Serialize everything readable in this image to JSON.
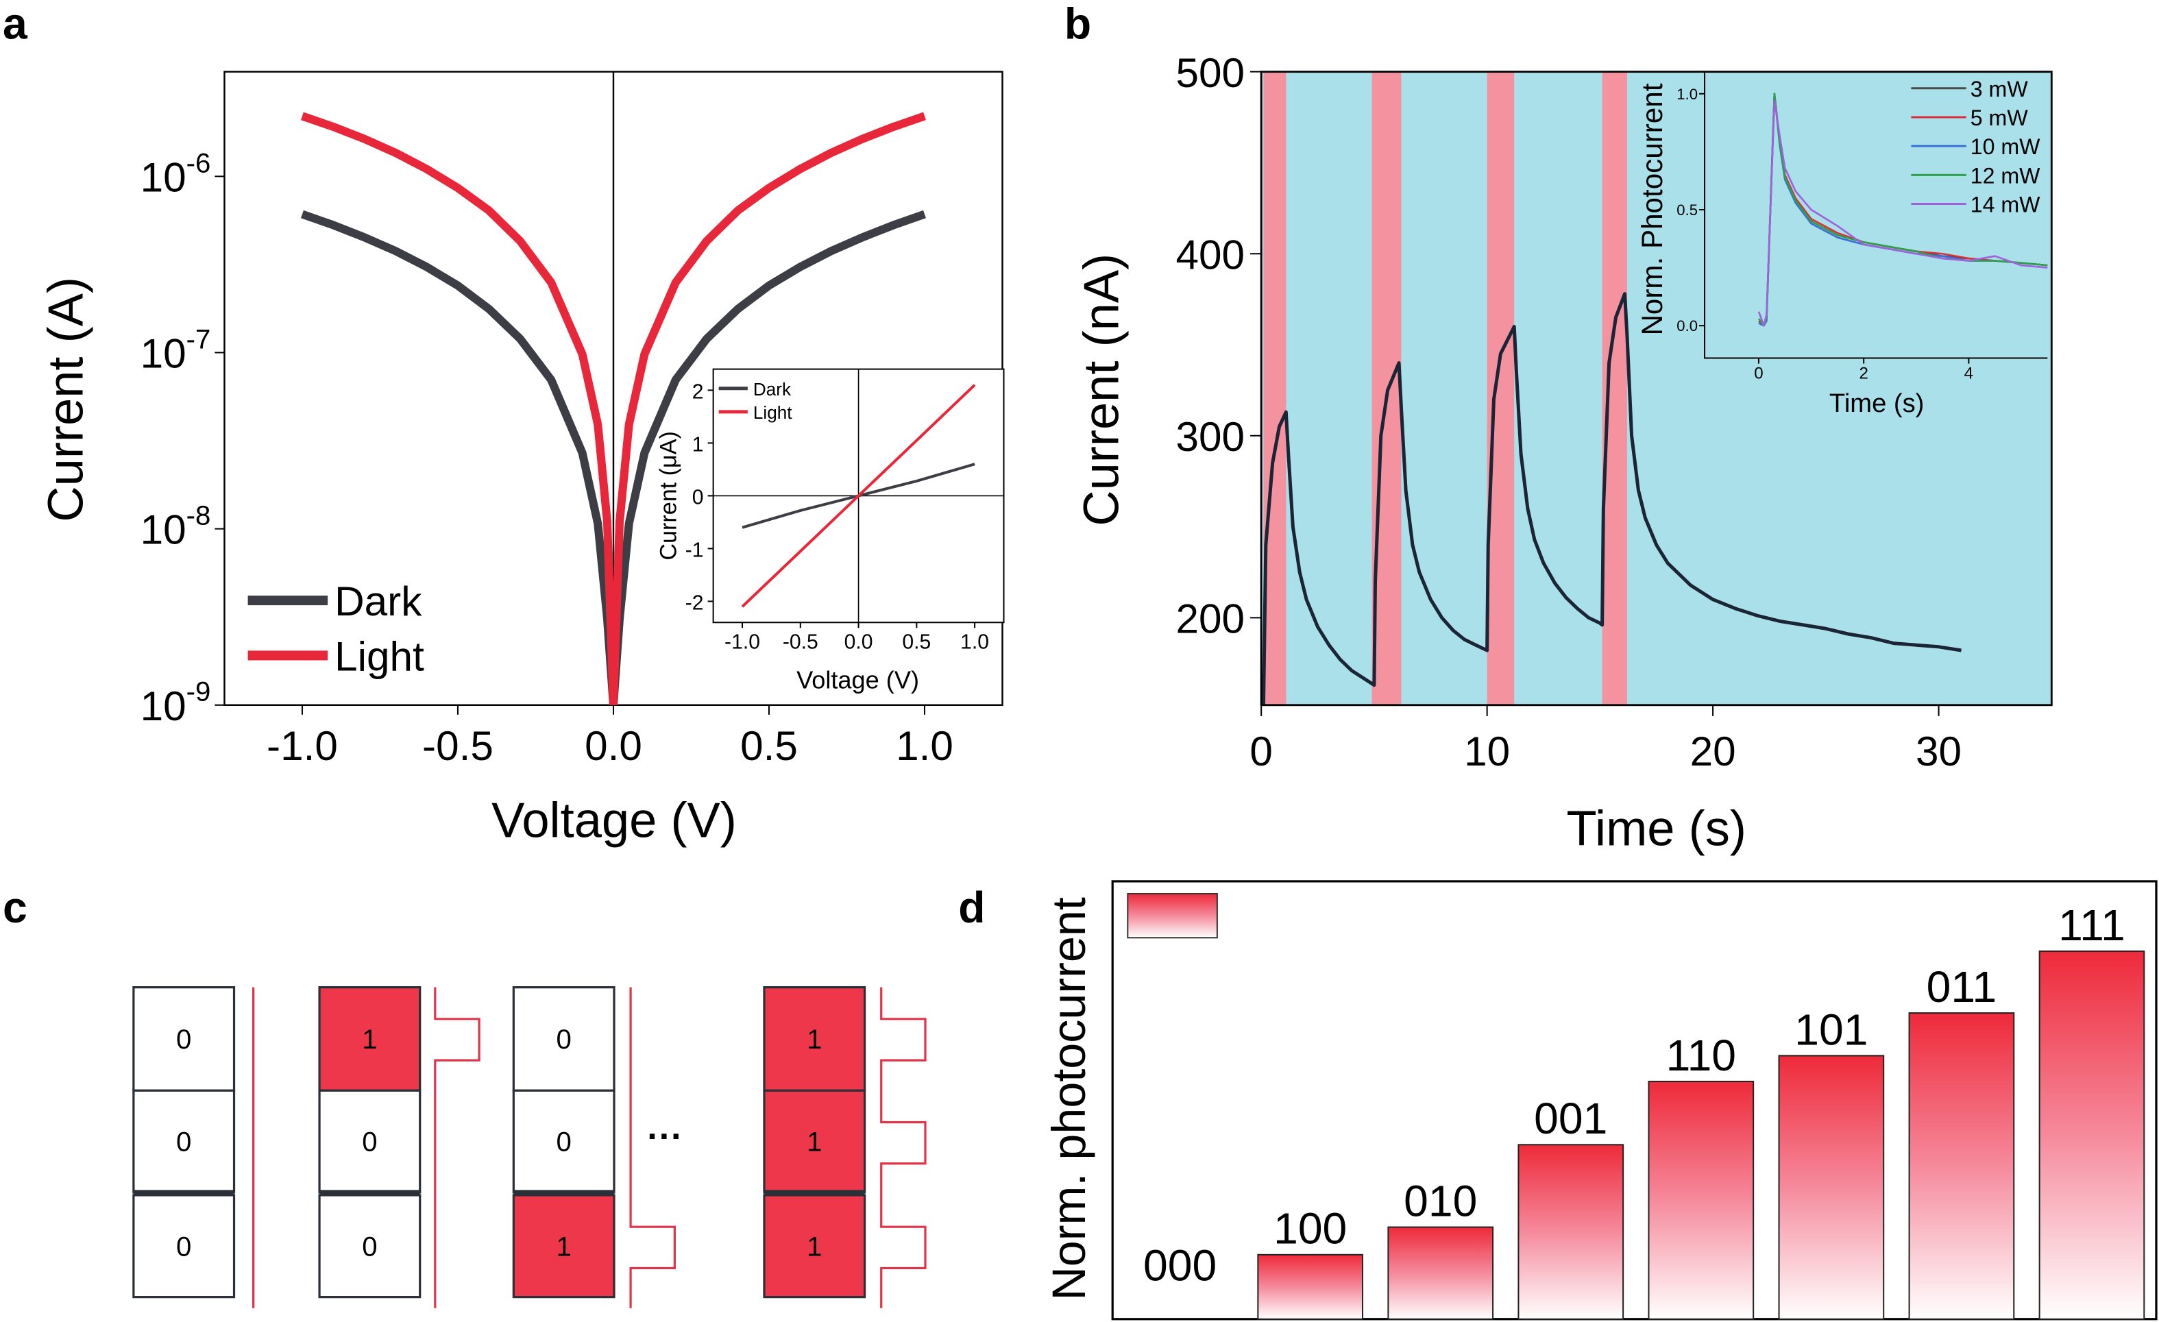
{
  "panel_labels": {
    "a": "a",
    "b": "b",
    "c": "c",
    "d": "d"
  },
  "chart_data": [
    {
      "panel": "a",
      "type": "line",
      "xlabel": "Voltage (V)",
      "ylabel": "Current (A)",
      "xlim": [
        -1.25,
        1.25
      ],
      "ylim": [
        1e-09,
        4e-06
      ],
      "yscale": "log",
      "x_ticks": [
        {
          "v": -1.0,
          "label": "-1.0"
        },
        {
          "v": -0.5,
          "label": "-0.5"
        },
        {
          "v": 0.0,
          "label": "0.0"
        },
        {
          "v": 0.5,
          "label": "0.5"
        },
        {
          "v": 1.0,
          "label": "1.0"
        }
      ],
      "y_ticks": [
        {
          "v": 1e-06,
          "base": "10",
          "exp": "-6"
        },
        {
          "v": 1e-07,
          "base": "10",
          "exp": "-7"
        },
        {
          "v": 1e-08,
          "base": "10",
          "exp": "-8"
        },
        {
          "v": 1e-09,
          "base": "10",
          "exp": "-9"
        }
      ],
      "legend": "bottom-left",
      "series": [
        {
          "name": "Dark",
          "color": "#3d3d45",
          "x": [
            -1,
            -0.9,
            -0.8,
            -0.7,
            -0.6,
            -0.5,
            -0.4,
            -0.3,
            -0.2,
            -0.1,
            -0.05,
            -0.02,
            0,
            0.02,
            0.05,
            0.1,
            0.2,
            0.3,
            0.4,
            0.5,
            0.6,
            0.7,
            0.8,
            0.9,
            1
          ],
          "y": [
            6.1e-07,
            5.29e-07,
            4.51e-07,
            3.77e-07,
            3.06e-07,
            2.4e-07,
            1.77e-07,
            1.2e-07,
            7e-08,
            2.7e-08,
            1.07e-08,
            3.1e-09,
            1e-09,
            3.1e-09,
            1.07e-08,
            2.7e-08,
            7e-08,
            1.2e-07,
            1.77e-07,
            2.4e-07,
            3.06e-07,
            3.77e-07,
            4.51e-07,
            5.29e-07,
            6.1e-07
          ]
        },
        {
          "name": "Light",
          "color": "#e8283a",
          "x": [
            -1,
            -0.9,
            -0.8,
            -0.7,
            -0.6,
            -0.5,
            -0.4,
            -0.3,
            -0.2,
            -0.1,
            -0.05,
            -0.02,
            0,
            0.02,
            0.05,
            0.1,
            0.2,
            0.3,
            0.4,
            0.5,
            0.6,
            0.7,
            0.8,
            0.9,
            1
          ],
          "y": [
            2.2e-06,
            1.91e-06,
            1.63e-06,
            1.36e-06,
            1.1e-06,
            8.6e-07,
            6.4e-07,
            4.3e-07,
            2.5e-07,
            9.8e-08,
            3.9e-08,
            1.1e-08,
            1e-09,
            1.1e-08,
            3.9e-08,
            9.8e-08,
            2.5e-07,
            4.3e-07,
            6.4e-07,
            8.6e-07,
            1.1e-06,
            1.36e-06,
            1.63e-06,
            1.91e-06,
            2.2e-06
          ]
        }
      ],
      "inset": {
        "type": "line",
        "xlabel": "Voltage (V)",
        "ylabel": "Current (μA)",
        "xlim": [
          -1.25,
          1.25
        ],
        "ylim": [
          -2.4,
          2.4
        ],
        "x_ticks": [
          {
            "v": -1.0,
            "label": "-1.0"
          },
          {
            "v": -0.5,
            "label": "-0.5"
          },
          {
            "v": 0.0,
            "label": "0.0"
          },
          {
            "v": 0.5,
            "label": "0.5"
          },
          {
            "v": 1.0,
            "label": "1.0"
          }
        ],
        "y_ticks": [
          {
            "v": 2,
            "label": "2"
          },
          {
            "v": 1,
            "label": "1"
          },
          {
            "v": 0,
            "label": "0"
          },
          {
            "v": -1,
            "label": "-1"
          },
          {
            "v": -2,
            "label": "-2"
          }
        ],
        "legend": "top-left",
        "series": [
          {
            "name": "Dark",
            "color": "#3d3d45",
            "x": [
              -1,
              -0.5,
              0,
              0.5,
              1
            ],
            "y": [
              -0.6,
              -0.28,
              0,
              0.28,
              0.6
            ]
          },
          {
            "name": "Light",
            "color": "#e8283a",
            "x": [
              -1,
              -0.5,
              0,
              0.5,
              1
            ],
            "y": [
              -2.1,
              -1.05,
              0,
              1.05,
              2.1
            ]
          }
        ]
      }
    },
    {
      "panel": "b",
      "type": "line",
      "xlabel": "Time (s)",
      "ylabel": "Current (nA)",
      "xlim": [
        0,
        35
      ],
      "ylim": [
        152,
        500
      ],
      "x_ticks": [
        {
          "v": 0,
          "label": "0"
        },
        {
          "v": 10,
          "label": "10"
        },
        {
          "v": 20,
          "label": "20"
        },
        {
          "v": 30,
          "label": "30"
        }
      ],
      "y_ticks": [
        {
          "v": 500,
          "label": "500"
        },
        {
          "v": 400,
          "label": "400"
        },
        {
          "v": 300,
          "label": "300"
        },
        {
          "v": 200,
          "label": "200"
        }
      ],
      "background_color": "#a9e0ea",
      "light_on_color": "#f4929f",
      "light_on_intervals": [
        [
          0.1,
          1.1
        ],
        [
          4.9,
          6.2
        ],
        [
          10.0,
          11.2
        ],
        [
          15.1,
          16.2
        ]
      ],
      "series": [
        {
          "color": "#1c2535",
          "x": [
            0.1,
            0.2,
            0.5,
            0.8,
            1.1,
            1.2,
            1.4,
            1.7,
            2.0,
            2.5,
            3.0,
            3.5,
            4.0,
            4.5,
            5.0,
            5.05,
            5.3,
            5.6,
            6.1,
            6.2,
            6.4,
            6.7,
            7.0,
            7.5,
            8.0,
            8.5,
            9.0,
            9.5,
            10.0,
            10.05,
            10.3,
            10.6,
            11.2,
            11.3,
            11.5,
            11.8,
            12.1,
            12.5,
            13,
            13.5,
            14,
            14.5,
            15.0,
            15.1,
            15.15,
            15.4,
            15.7,
            16.1,
            16.2,
            16.4,
            16.7,
            17,
            17.5,
            18,
            19,
            20,
            21,
            22,
            23,
            24,
            25,
            26,
            27,
            28,
            29,
            30,
            31
          ],
          "y": [
            150,
            240,
            285,
            305,
            313,
            290,
            250,
            225,
            210,
            195,
            185,
            177,
            171,
            167,
            163,
            220,
            300,
            325,
            340,
            315,
            270,
            240,
            225,
            210,
            200,
            193,
            188,
            185,
            182,
            240,
            320,
            345,
            360,
            335,
            290,
            260,
            243,
            230,
            219,
            211,
            205,
            200,
            197,
            196,
            260,
            340,
            365,
            378,
            355,
            300,
            270,
            255,
            240,
            230,
            218,
            210,
            205,
            201,
            198,
            196,
            194,
            191,
            189,
            186,
            185,
            184,
            182
          ]
        }
      ],
      "inset": {
        "type": "line",
        "xlabel": "Time (s)",
        "ylabel": "Norm. Photocurrent",
        "xlim": [
          -1.03,
          5.5
        ],
        "ylim": [
          -0.14,
          1.095
        ],
        "x_ticks": [
          {
            "v": 0,
            "label": "0"
          },
          {
            "v": 2,
            "label": "2"
          },
          {
            "v": 4,
            "label": "4"
          }
        ],
        "y_ticks": [
          {
            "v": 1.0,
            "label": "1.0"
          },
          {
            "v": 0.5,
            "label": "0.5"
          },
          {
            "v": 0.0,
            "label": "0.0"
          }
        ],
        "legend": "top-right",
        "x": [
          0,
          0.1,
          0.15,
          0.3,
          0.4,
          0.5,
          0.7,
          1.0,
          1.5,
          2.0,
          2.5,
          3.0,
          3.5,
          4.0,
          4.5,
          5.0,
          5.5
        ],
        "series": [
          {
            "name": "3 mW",
            "color": "#4a4a4a",
            "y": [
              0.02,
              0,
              0.03,
              1.0,
              0.79,
              0.64,
              0.54,
              0.45,
              0.39,
              0.36,
              0.34,
              0.32,
              0.3,
              0.29,
              0.28,
              0.27,
              0.26
            ]
          },
          {
            "name": "5 mW",
            "color": "#d9303c",
            "y": [
              0.02,
              0,
              0.04,
              1.0,
              0.8,
              0.65,
              0.55,
              0.46,
              0.4,
              0.36,
              0.34,
              0.32,
              0.31,
              0.29,
              0.28,
              0.27,
              0.26
            ]
          },
          {
            "name": "10 mW",
            "color": "#3a6fd8",
            "y": [
              0.01,
              0,
              0.02,
              1.0,
              0.78,
              0.63,
              0.53,
              0.44,
              0.38,
              0.35,
              0.33,
              0.31,
              0.3,
              0.28,
              0.28,
              0.27,
              0.26
            ]
          },
          {
            "name": "12 mW",
            "color": "#2ea04a",
            "y": [
              0.03,
              0,
              0.03,
              1.0,
              0.79,
              0.64,
              0.54,
              0.45,
              0.39,
              0.36,
              0.34,
              0.32,
              0.29,
              0.28,
              0.28,
              0.27,
              0.26
            ]
          },
          {
            "name": "14 mW",
            "color": "#a062dc",
            "y": [
              0.06,
              0,
              0.05,
              0.97,
              0.82,
              0.68,
              0.58,
              0.5,
              0.43,
              0.35,
              0.33,
              0.31,
              0.29,
              0.28,
              0.3,
              0.26,
              0.25
            ]
          }
        ]
      }
    },
    {
      "panel": "d",
      "type": "bar",
      "ylabel": "Norm. photocurrent",
      "ylim": [
        0,
        1.19
      ],
      "categories": [
        "000",
        "100",
        "010",
        "001",
        "110",
        "101",
        "011",
        "111"
      ],
      "values": [
        0,
        0.175,
        0.25,
        0.474,
        0.646,
        0.716,
        0.832,
        1.0
      ],
      "bar_color_top": "#ee2a3a",
      "bar_color_bottom": "#ffffff",
      "legend": "top-left"
    }
  ],
  "diagram_c": {
    "columns": [
      {
        "bits": [
          "0",
          "0",
          "0"
        ]
      },
      {
        "bits": [
          "1",
          "0",
          "0"
        ]
      },
      {
        "bits": [
          "0",
          "0",
          "1"
        ]
      },
      {
        "bits": [
          "1",
          "1",
          "1"
        ]
      }
    ],
    "ellipsis": "···",
    "on_color": "#ef374b",
    "wire_color": "#e23448"
  }
}
